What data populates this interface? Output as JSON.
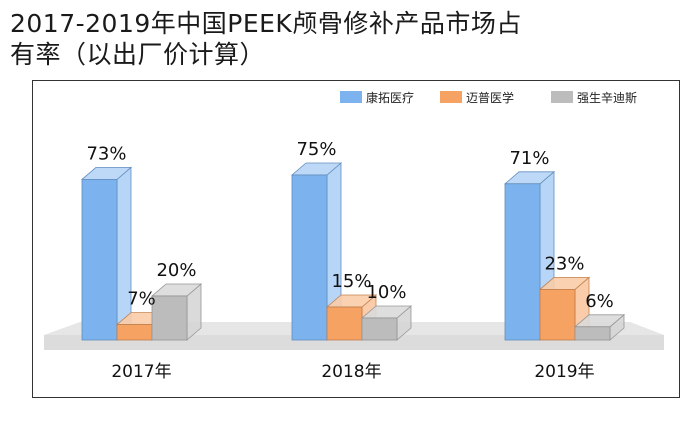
{
  "title": {
    "line1": "2017-2019年中国PEEK颅骨修补产品市场占",
    "line2": "有率（以出厂价计算）"
  },
  "colors": {
    "series": [
      "#7cb3ef",
      "#f5a263",
      "#bcbcbc"
    ],
    "floor": "#dcdcdc"
  },
  "chart_data": {
    "type": "bar",
    "title": "2017-2019年中国PEEK颅骨修补产品市场占有率（以出厂价计算）",
    "categories": [
      "2017年",
      "2018年",
      "2019年"
    ],
    "series": [
      {
        "name": "康拓医疗",
        "values": [
          73,
          75,
          71
        ]
      },
      {
        "name": "迈普医学",
        "values": [
          7,
          15,
          23
        ]
      },
      {
        "name": "强生辛迪斯",
        "values": [
          20,
          10,
          6
        ]
      }
    ],
    "value_labels": [
      [
        "73%",
        "7%",
        "20%"
      ],
      [
        "75%",
        "15%",
        "10%"
      ],
      [
        "71%",
        "23%",
        "6%"
      ]
    ],
    "unit": "%",
    "ylim": [
      0,
      100
    ],
    "grid": false,
    "legend": "top-right",
    "style": "3d-bars"
  }
}
